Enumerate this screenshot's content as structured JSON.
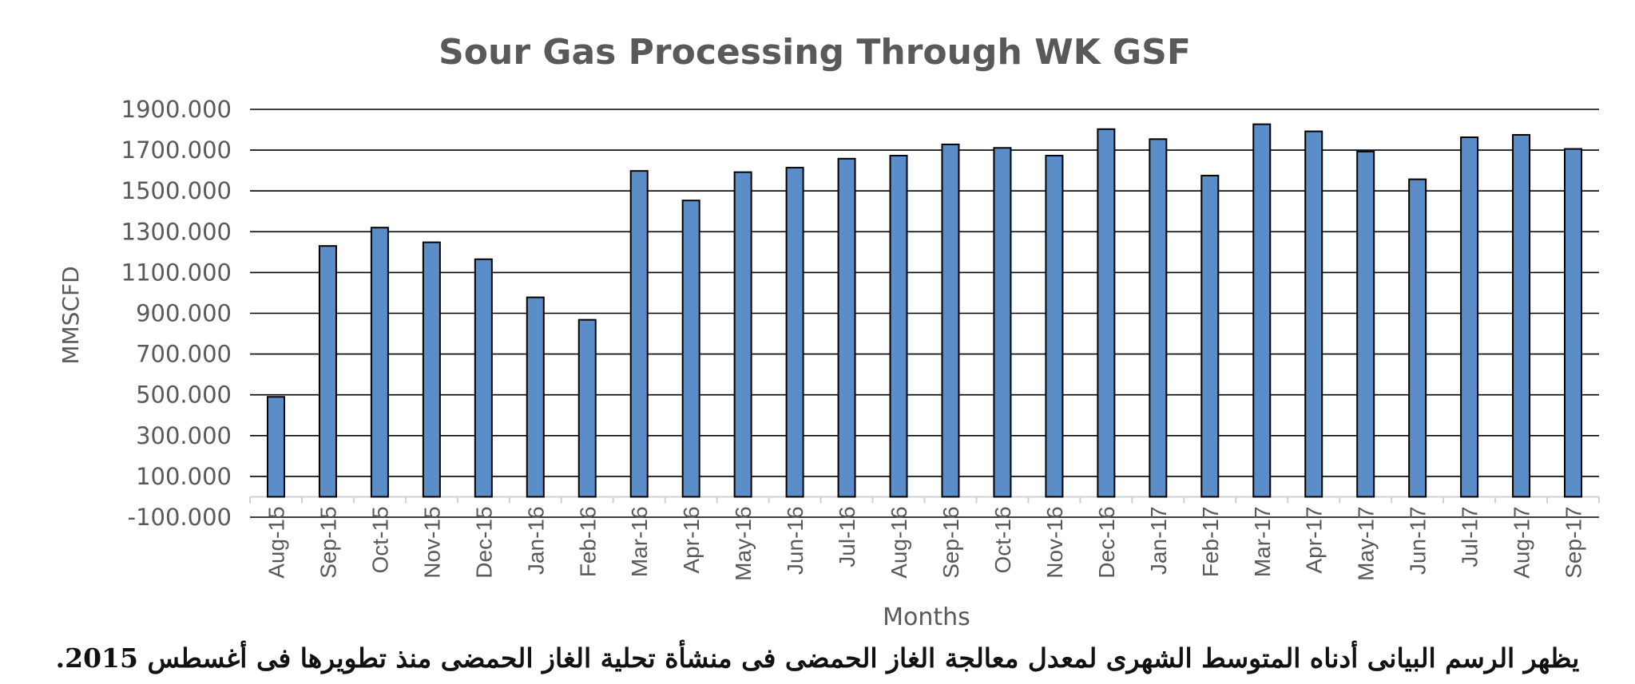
{
  "chart_data": {
    "type": "bar",
    "title": "Sour Gas Processing Through WK GSF",
    "xlabel": "Months",
    "ylabel": "MMSCFD",
    "ylim": [
      -100,
      1900
    ],
    "yticks": [
      "-100.000",
      "100.000",
      "300.000",
      "500.000",
      "700.000",
      "900.000",
      "1100.000",
      "1300.000",
      "1500.000",
      "1700.000",
      "1900.000"
    ],
    "categories": [
      "Aug-15",
      "Sep-15",
      "Oct-15",
      "Nov-15",
      "Dec-15",
      "Jan-16",
      "Feb-16",
      "Mar-16",
      "Apr-16",
      "May-16",
      "Jun-16",
      "Jul-16",
      "Aug-16",
      "Sep-16",
      "Oct-16",
      "Nov-16",
      "Dec-16",
      "Jan-17",
      "Feb-17",
      "Mar-17",
      "Apr-17",
      "May-17",
      "Jun-17",
      "Jul-17",
      "Aug-17",
      "Sep-17"
    ],
    "values": [
      490,
      1230,
      1320,
      1248,
      1165,
      978,
      868,
      1598,
      1453,
      1592,
      1614,
      1658,
      1673,
      1728,
      1711,
      1673,
      1803,
      1754,
      1575,
      1827,
      1792,
      1693,
      1557,
      1763,
      1775,
      1706
    ],
    "bar_color": "#5b8ec9",
    "bar_stroke": "#000000",
    "grid": true,
    "legend": "none"
  },
  "caption": "يظهر الرسم البيانى أدناه المتوسط الشهرى لمعدل معالجة الغاز الحمضى فى منشأة تحلية الغاز الحمضى منذ تطويرها فى أغسطس 2015."
}
